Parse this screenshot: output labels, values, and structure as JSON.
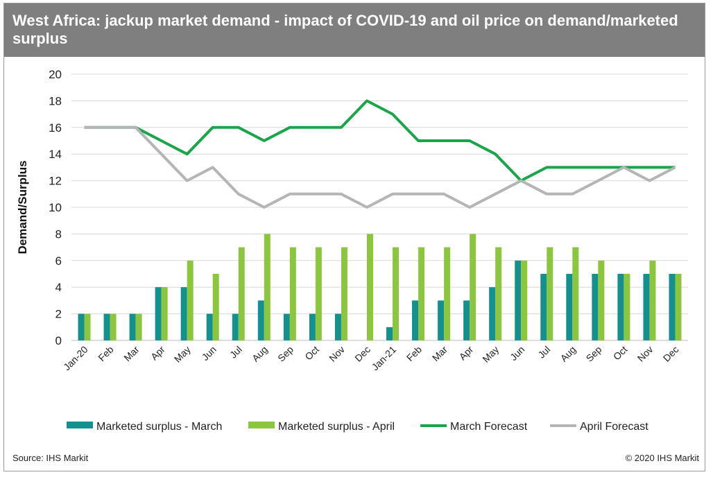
{
  "title": "West Africa: jackup market demand - impact of COVID-19 and oil price on demand/marketed surplus",
  "source": "Source: IHS Markit",
  "copyright": "© 2020 IHS Markit",
  "colors": {
    "march_bar": "#14908f",
    "april_bar": "#8cc63f",
    "march_line": "#1aa54a",
    "april_line": "#b5b5b5",
    "title_bg": "#7f7f7f"
  },
  "chart_data": {
    "type": "bar",
    "title": "",
    "ylabel": "Demand/Surplus",
    "xlabel": "",
    "ylim": [
      0,
      20
    ],
    "yticks": [
      0,
      2,
      4,
      6,
      8,
      10,
      12,
      14,
      16,
      18,
      20
    ],
    "grid": true,
    "legend_position": "bottom",
    "categories": [
      "Jan-20",
      "Feb",
      "Mar",
      "Apr",
      "May",
      "Jun",
      "Jul",
      "Aug",
      "Sep",
      "Oct",
      "Nov",
      "Dec",
      "Jan-21",
      "Feb",
      "Mar",
      "Apr",
      "May",
      "Jun",
      "Jul",
      "Aug",
      "Sep",
      "Oct",
      "Nov",
      "Dec"
    ],
    "series": [
      {
        "name": "Marketed surplus - March",
        "kind": "bar",
        "color": "#14908f",
        "values": [
          2,
          2,
          2,
          4,
          4,
          2,
          2,
          3,
          2,
          2,
          2,
          0,
          1,
          3,
          3,
          3,
          4,
          6,
          5,
          5,
          5,
          5,
          5,
          5
        ]
      },
      {
        "name": "Marketed surplus - April",
        "kind": "bar",
        "color": "#8cc63f",
        "values": [
          2,
          2,
          2,
          4,
          6,
          5,
          7,
          8,
          7,
          7,
          7,
          8,
          7,
          7,
          7,
          8,
          7,
          6,
          7,
          7,
          6,
          5,
          6,
          5
        ]
      },
      {
        "name": "March Forecast",
        "kind": "line",
        "color": "#1aa54a",
        "values": [
          16,
          16,
          16,
          15,
          14,
          16,
          16,
          15,
          16,
          16,
          16,
          18,
          17,
          15,
          15,
          15,
          14,
          12,
          13,
          13,
          13,
          13,
          13,
          13
        ]
      },
      {
        "name": "April Forecast",
        "kind": "line",
        "color": "#b5b5b5",
        "values": [
          16,
          16,
          16,
          14,
          12,
          13,
          11,
          10,
          11,
          11,
          11,
          10,
          11,
          11,
          11,
          10,
          11,
          12,
          11,
          11,
          12,
          13,
          12,
          13
        ]
      }
    ]
  }
}
